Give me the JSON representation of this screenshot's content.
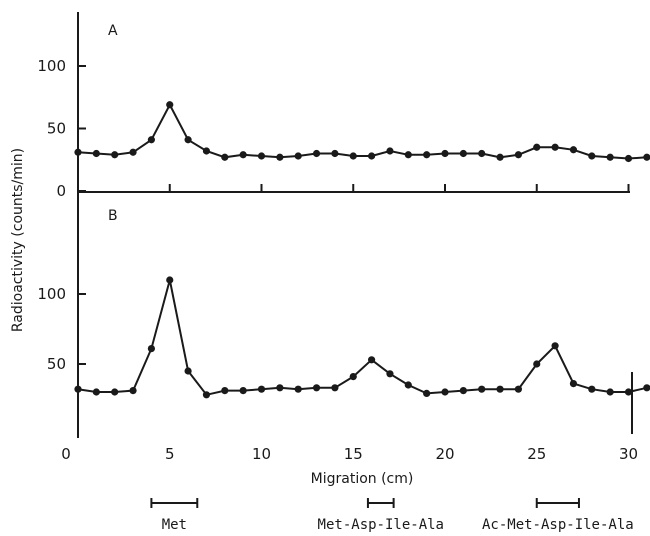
{
  "chart_data": {
    "type": "line",
    "ylabel": "Radioactivity (counts/min)",
    "xlabel": "Migration (cm)",
    "x_ticks": [
      "0",
      "5",
      "10",
      "15",
      "20",
      "25",
      "30"
    ],
    "panels": [
      {
        "label": "A",
        "ylim": [
          0,
          125
        ],
        "y_ticks": [
          "0",
          "50",
          "100"
        ],
        "x": [
          0,
          1,
          2,
          3,
          4,
          5,
          6,
          7,
          8,
          9,
          10,
          11,
          12,
          13,
          14,
          15,
          16,
          17,
          18,
          19,
          20,
          21,
          22,
          23,
          24,
          25,
          26,
          27,
          28,
          29,
          30,
          31
        ],
        "y": [
          31,
          30,
          29,
          31,
          41,
          69,
          41,
          32,
          27,
          29,
          28,
          27,
          28,
          30,
          30,
          28,
          28,
          32,
          29,
          29,
          30,
          30,
          30,
          27,
          29,
          35,
          35,
          33,
          28,
          27,
          26,
          27
        ]
      },
      {
        "label": "B",
        "ylim": [
          0,
          125
        ],
        "y_ticks": [
          "50",
          "100"
        ],
        "x": [
          0,
          1,
          2,
          3,
          4,
          5,
          6,
          7,
          8,
          9,
          10,
          11,
          12,
          13,
          14,
          15,
          16,
          17,
          18,
          19,
          20,
          21,
          22,
          23,
          24,
          25,
          26,
          27,
          28,
          29,
          30,
          31
        ],
        "y": [
          32,
          30,
          30,
          31,
          61,
          110,
          45,
          28,
          31,
          31,
          32,
          33,
          32,
          33,
          33,
          41,
          53,
          43,
          35,
          29,
          30,
          31,
          32,
          32,
          32,
          50,
          63,
          36,
          32,
          30,
          30,
          33
        ]
      }
    ],
    "markers": [
      {
        "label": "Met",
        "start": 4,
        "end": 6.5
      },
      {
        "label": "Met-Asp-Ile-Ala",
        "start": 15.8,
        "end": 17.2
      },
      {
        "label": "Ac-Met-Asp-Ile-Ala",
        "start": 25,
        "end": 27.3
      }
    ]
  }
}
